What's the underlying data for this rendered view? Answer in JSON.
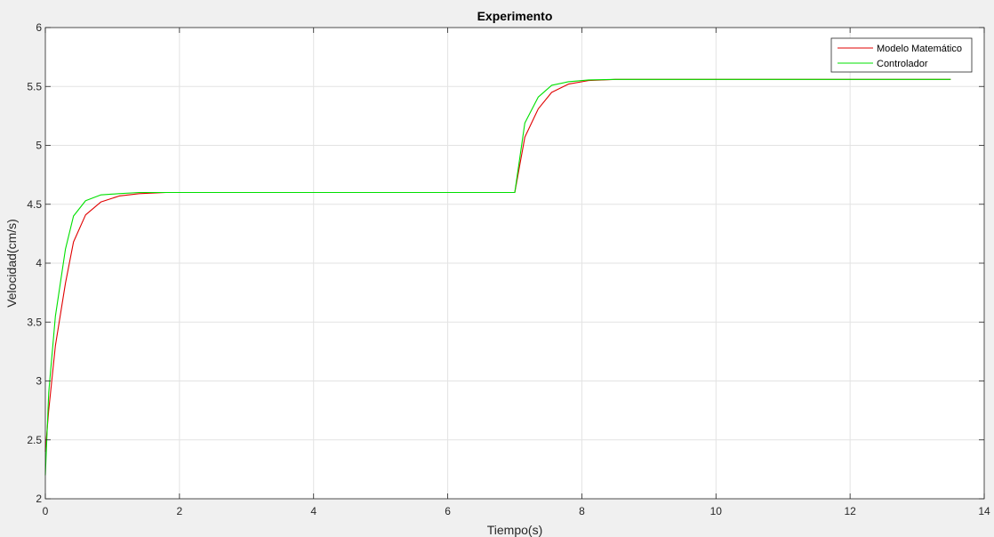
{
  "chart_data": {
    "type": "line",
    "title": "Experimento",
    "xlabel": "Tiempo(s)",
    "ylabel": "Velocidad(cm/s)",
    "xlim": [
      0,
      14
    ],
    "ylim": [
      2,
      6
    ],
    "xticks": [
      "0",
      "2",
      "4",
      "6",
      "8",
      "10",
      "12",
      "14"
    ],
    "yticks": [
      "2",
      "2.5",
      "3",
      "3.5",
      "4",
      "4.5",
      "5",
      "5.5",
      "6"
    ],
    "grid": true,
    "legend_position": "top-right",
    "series": [
      {
        "name": "Modelo Matemático",
        "color": "#e00000",
        "x": [
          0,
          0.05,
          0.15,
          0.3,
          0.42,
          0.6,
          0.83,
          1.1,
          1.4,
          1.8,
          2.5,
          4,
          6,
          7.0,
          7.15,
          7.35,
          7.55,
          7.8,
          8.1,
          8.5,
          9,
          10,
          12,
          13.5
        ],
        "y": [
          2.4,
          2.75,
          3.3,
          3.83,
          4.18,
          4.41,
          4.52,
          4.57,
          4.59,
          4.6,
          4.6,
          4.6,
          4.6,
          4.6,
          5.07,
          5.31,
          5.45,
          5.52,
          5.55,
          5.56,
          5.56,
          5.56,
          5.56,
          5.56
        ]
      },
      {
        "name": "Controlador",
        "color": "#00e000",
        "x": [
          0,
          0.05,
          0.15,
          0.3,
          0.42,
          0.6,
          0.83,
          1.1,
          1.4,
          1.8,
          2.5,
          4,
          6,
          7.0,
          7.15,
          7.35,
          7.55,
          7.8,
          8.1,
          8.5,
          9,
          10,
          12,
          13.5
        ],
        "y": [
          2.2,
          2.9,
          3.55,
          4.12,
          4.4,
          4.53,
          4.58,
          4.59,
          4.6,
          4.6,
          4.6,
          4.6,
          4.6,
          4.6,
          5.19,
          5.41,
          5.51,
          5.54,
          5.555,
          5.56,
          5.56,
          5.56,
          5.56,
          5.56
        ]
      }
    ]
  }
}
